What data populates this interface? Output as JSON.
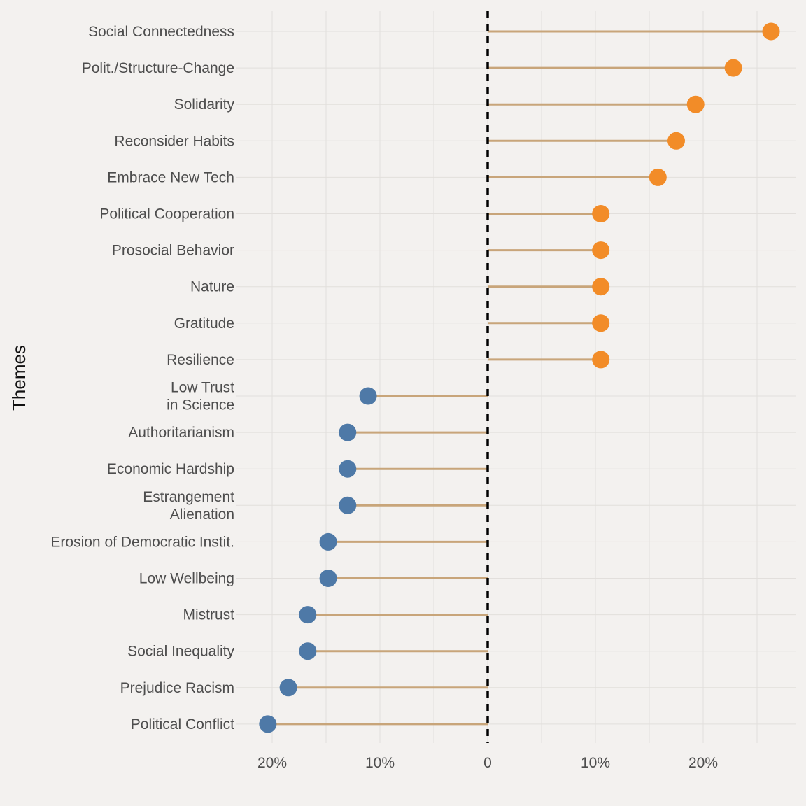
{
  "chart_data": {
    "type": "lollipop",
    "orientation": "horizontal",
    "ylabel": "Themes",
    "xlabel": "",
    "xlim": [
      -0.2,
      0.29
    ],
    "x_ticks": [
      {
        "value": -0.2,
        "label": "20%"
      },
      {
        "value": -0.1,
        "label": "10%"
      },
      {
        "value": 0,
        "label": "0"
      },
      {
        "value": 0.1,
        "label": "10%"
      },
      {
        "value": 0.2,
        "label": "20%"
      }
    ],
    "reference_line": {
      "value": 0,
      "style": "dashed",
      "color": "#000000"
    },
    "grid": true,
    "colors": {
      "positive": "#f28c28",
      "negative": "#4e79a7",
      "stem": "#c8a57a",
      "background": "#f3f1ef",
      "grid": "#e2dfdc"
    },
    "categories": [
      {
        "label": [
          "Social Connectedness"
        ],
        "value": 0.263
      },
      {
        "label": [
          "Polit./Structure-Change"
        ],
        "value": 0.228
      },
      {
        "label": [
          "Solidarity"
        ],
        "value": 0.193
      },
      {
        "label": [
          "Reconsider Habits"
        ],
        "value": 0.175
      },
      {
        "label": [
          "Embrace New Tech"
        ],
        "value": 0.158
      },
      {
        "label": [
          "Political Cooperation"
        ],
        "value": 0.105
      },
      {
        "label": [
          "Prosocial Behavior"
        ],
        "value": 0.105
      },
      {
        "label": [
          "Nature"
        ],
        "value": 0.105
      },
      {
        "label": [
          "Gratitude"
        ],
        "value": 0.105
      },
      {
        "label": [
          "Resilience"
        ],
        "value": 0.105
      },
      {
        "label": [
          "Low Trust",
          "in Science"
        ],
        "value": -0.111
      },
      {
        "label": [
          "Authoritarianism"
        ],
        "value": -0.13
      },
      {
        "label": [
          "Economic Hardship"
        ],
        "value": -0.13
      },
      {
        "label": [
          "Estrangement",
          "Alienation"
        ],
        "value": -0.13
      },
      {
        "label": [
          "Erosion of Democratic Instit."
        ],
        "value": -0.148
      },
      {
        "label": [
          "Low Wellbeing"
        ],
        "value": -0.148
      },
      {
        "label": [
          "Mistrust"
        ],
        "value": -0.167
      },
      {
        "label": [
          "Social Inequality"
        ],
        "value": -0.167
      },
      {
        "label": [
          "Prejudice Racism"
        ],
        "value": -0.185
      },
      {
        "label": [
          "Political Conflict"
        ],
        "value": -0.204
      }
    ]
  }
}
